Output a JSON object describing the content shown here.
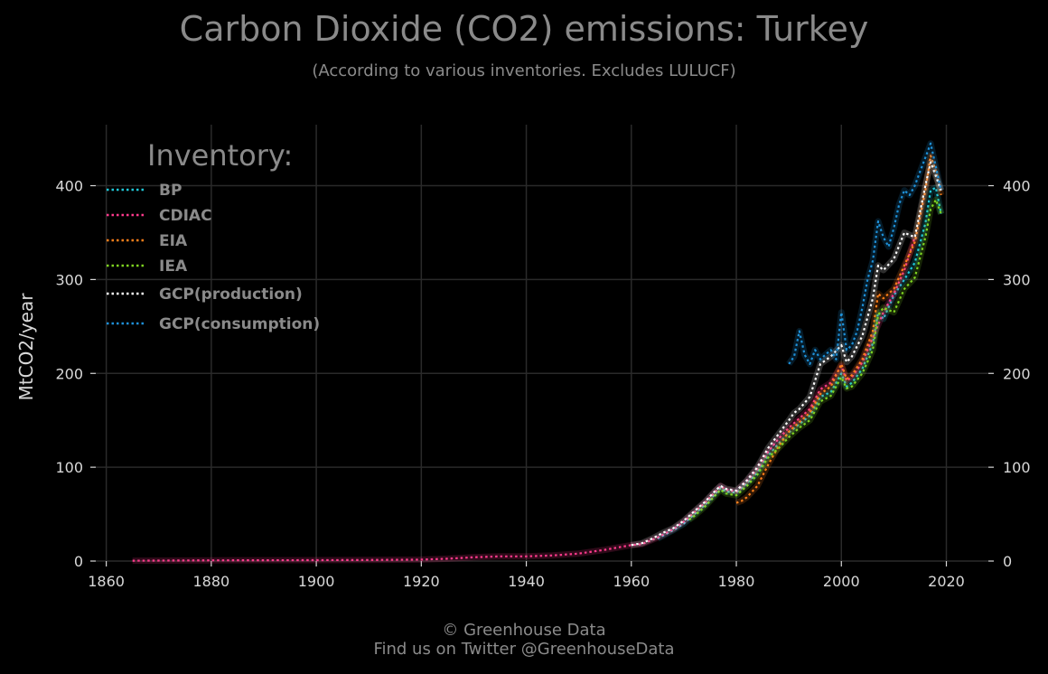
{
  "title": "Carbon Dioxide (CO2) emissions: Turkey",
  "subtitle": "(According to various inventories. Excludes LULUCF)",
  "footer": {
    "line1": "© Greenhouse Data",
    "line2": "Find us on Twitter @GreenhouseData"
  },
  "chart_data": {
    "type": "line",
    "ylabel": "MtCO2/year",
    "xlim": [
      1858,
      2028
    ],
    "ylim": [
      0,
      465
    ],
    "xticks": [
      1860,
      1880,
      1900,
      1920,
      1940,
      1960,
      1980,
      2000,
      2020
    ],
    "yticks": [
      0,
      100,
      200,
      300,
      400
    ],
    "grid": true,
    "legend": {
      "title": "Inventory:",
      "placement": "top-left"
    },
    "series": [
      {
        "name": "BP",
        "color": "#1fc8d8",
        "x": [
          1965,
          1968,
          1970,
          1972,
          1974,
          1976,
          1977,
          1978,
          1980,
          1982,
          1984,
          1986,
          1988,
          1990,
          1992,
          1994,
          1996,
          1998,
          2000,
          2001,
          2002,
          2004,
          2006,
          2007,
          2008,
          2010,
          2012,
          2014,
          2016,
          2017,
          2018,
          2019
        ],
        "y": [
          24,
          33,
          40,
          50,
          60,
          72,
          78,
          74,
          73,
          83,
          94,
          112,
          125,
          137,
          146,
          155,
          175,
          180,
          200,
          186,
          190,
          205,
          232,
          265,
          258,
          283,
          300,
          318,
          360,
          395,
          398,
          370
        ]
      },
      {
        "name": "CDIAC",
        "color": "#ff3a8c",
        "x": [
          1865,
          1880,
          1900,
          1910,
          1920,
          1925,
          1930,
          1935,
          1940,
          1945,
          1950,
          1955,
          1960,
          1962,
          1965,
          1968,
          1970,
          1972,
          1974,
          1976,
          1977,
          1978,
          1980,
          1982,
          1984,
          1986,
          1988,
          1990,
          1992,
          1994,
          1996,
          1998,
          2000,
          2001,
          2002,
          2004,
          2006,
          2008,
          2010,
          2012,
          2014
        ],
        "y": [
          0.4,
          0.8,
          1,
          1.2,
          1.5,
          2.5,
          4,
          5,
          5,
          6,
          8,
          12,
          17,
          18,
          25,
          34,
          42,
          52,
          62,
          74,
          80,
          76,
          74,
          85,
          98,
          116,
          130,
          142,
          152,
          162,
          183,
          190,
          208,
          192,
          196,
          212,
          238,
          265,
          285,
          310,
          345
        ]
      },
      {
        "name": "EIA",
        "color": "#ff7f1a",
        "x": [
          1980,
          1981,
          1982,
          1984,
          1986,
          1988,
          1990,
          1992,
          1994,
          1996,
          1998,
          2000,
          2001,
          2002,
          2004,
          2006,
          2007,
          2008,
          2010,
          2012,
          2014,
          2016,
          2017,
          2018,
          2019
        ],
        "y": [
          62,
          64,
          68,
          80,
          102,
          122,
          138,
          148,
          158,
          178,
          186,
          210,
          194,
          198,
          215,
          245,
          285,
          280,
          290,
          315,
          340,
          395,
          432,
          415,
          390
        ]
      },
      {
        "name": "IEA",
        "color": "#7ed321",
        "x": [
          1971,
          1972,
          1974,
          1976,
          1977,
          1978,
          1980,
          1982,
          1984,
          1986,
          1988,
          1990,
          1992,
          1994,
          1996,
          1998,
          2000,
          2001,
          2002,
          2004,
          2006,
          2007,
          2008,
          2010,
          2012,
          2014,
          2016,
          2017,
          2018,
          2019
        ],
        "y": [
          44,
          48,
          58,
          70,
          76,
          72,
          70,
          80,
          92,
          110,
          120,
          132,
          142,
          150,
          170,
          176,
          196,
          184,
          186,
          200,
          225,
          262,
          270,
          265,
          290,
          302,
          345,
          375,
          385,
          370
        ]
      },
      {
        "name": "GCP(production)",
        "color": "#ffffff",
        "x": [
          1960,
          1962,
          1964,
          1966,
          1968,
          1970,
          1972,
          1974,
          1976,
          1977,
          1978,
          1980,
          1982,
          1984,
          1986,
          1988,
          1990,
          1991,
          1992,
          1994,
          1996,
          1998,
          2000,
          2001,
          2002,
          2004,
          2006,
          2007,
          2008,
          2010,
          2012,
          2014,
          2016,
          2017,
          2018,
          2019
        ],
        "y": [
          17,
          19,
          24,
          30,
          35,
          43,
          53,
          63,
          75,
          80,
          77,
          75,
          86,
          100,
          120,
          135,
          150,
          158,
          162,
          175,
          210,
          218,
          230,
          212,
          218,
          240,
          280,
          315,
          310,
          322,
          350,
          345,
          400,
          425,
          410,
          395
        ]
      },
      {
        "name": "GCP(consumption)",
        "color": "#1e90d8",
        "x": [
          1990,
          1991,
          1992,
          1993,
          1994,
          1995,
          1996,
          1997,
          1998,
          1999,
          2000,
          2001,
          2002,
          2003,
          2004,
          2005,
          2006,
          2007,
          2008,
          2009,
          2010,
          2011,
          2012,
          2013,
          2014,
          2015,
          2016,
          2017,
          2018,
          2019
        ],
        "y": [
          210,
          218,
          245,
          220,
          210,
          225,
          215,
          220,
          225,
          215,
          265,
          225,
          230,
          245,
          270,
          300,
          320,
          362,
          345,
          335,
          355,
          380,
          395,
          390,
          400,
          415,
          430,
          445,
          420,
          395
        ]
      }
    ]
  }
}
